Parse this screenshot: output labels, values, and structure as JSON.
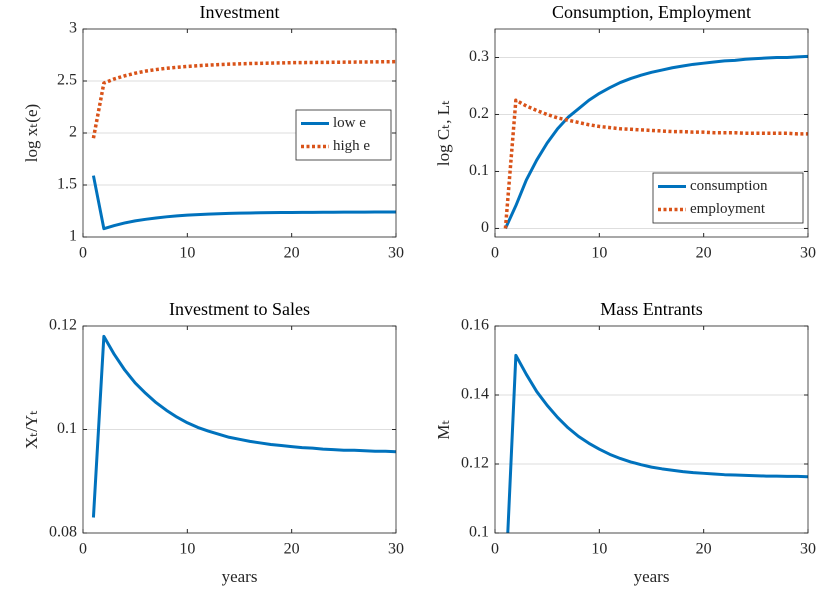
{
  "chart_data": [
    {
      "type": "line",
      "title": "Investment",
      "ylabel": "log xₜ(e)",
      "xlim": [
        0,
        30
      ],
      "xticks": [
        0,
        10,
        20,
        30
      ],
      "ylim": [
        1,
        3
      ],
      "yticks": [
        1,
        1.5,
        2,
        2.5,
        3
      ],
      "grid": true,
      "legend": "east",
      "x": [
        1,
        2,
        3,
        4,
        5,
        6,
        7,
        8,
        9,
        10,
        11,
        12,
        13,
        14,
        15,
        16,
        17,
        18,
        19,
        20,
        21,
        22,
        23,
        24,
        25,
        26,
        27,
        28,
        29,
        30
      ],
      "series": [
        {
          "name": "low e",
          "color": "#0072BD",
          "line_style": "solid",
          "values": [
            1.59,
            1.08,
            1.11,
            1.135,
            1.155,
            1.17,
            1.183,
            1.194,
            1.203,
            1.21,
            1.215,
            1.22,
            1.224,
            1.227,
            1.229,
            1.231,
            1.233,
            1.234,
            1.235,
            1.236,
            1.237,
            1.237,
            1.238,
            1.238,
            1.239,
            1.239,
            1.239,
            1.24,
            1.24,
            1.24
          ]
        },
        {
          "name": "high e",
          "color": "#D95319",
          "line_style": "dotted",
          "values": [
            1.95,
            2.48,
            2.52,
            2.55,
            2.575,
            2.595,
            2.61,
            2.622,
            2.632,
            2.64,
            2.647,
            2.653,
            2.658,
            2.662,
            2.665,
            2.668,
            2.67,
            2.672,
            2.674,
            2.676,
            2.677,
            2.678,
            2.679,
            2.68,
            2.681,
            2.682,
            2.683,
            2.684,
            2.685,
            2.686
          ]
        }
      ]
    },
    {
      "type": "line",
      "title": "Consumption, Employment",
      "ylabel": "log Cₜ, Lₜ",
      "xlim": [
        0,
        30
      ],
      "xticks": [
        0,
        10,
        20,
        30
      ],
      "ylim": [
        -0.015,
        0.35
      ],
      "yticks": [
        0,
        0.1,
        0.2,
        0.3
      ],
      "grid": true,
      "legend": "southeast",
      "x": [
        1,
        2,
        3,
        4,
        5,
        6,
        7,
        8,
        9,
        10,
        11,
        12,
        13,
        14,
        15,
        16,
        17,
        18,
        19,
        20,
        21,
        22,
        23,
        24,
        25,
        26,
        27,
        28,
        29,
        30
      ],
      "series": [
        {
          "name": "consumption",
          "color": "#0072BD",
          "line_style": "solid",
          "values": [
            0,
            0.04,
            0.085,
            0.12,
            0.15,
            0.175,
            0.195,
            0.21,
            0.225,
            0.237,
            0.247,
            0.256,
            0.263,
            0.269,
            0.274,
            0.278,
            0.282,
            0.285,
            0.288,
            0.29,
            0.292,
            0.294,
            0.295,
            0.297,
            0.298,
            0.299,
            0.3,
            0.3,
            0.301,
            0.302
          ]
        },
        {
          "name": "employment",
          "color": "#D95319",
          "line_style": "dotted",
          "values": [
            0,
            0.225,
            0.215,
            0.207,
            0.2,
            0.194,
            0.19,
            0.186,
            0.182,
            0.179,
            0.177,
            0.175,
            0.174,
            0.173,
            0.172,
            0.171,
            0.17,
            0.17,
            0.169,
            0.169,
            0.168,
            0.168,
            0.168,
            0.167,
            0.167,
            0.167,
            0.167,
            0.167,
            0.166,
            0.166
          ]
        }
      ]
    },
    {
      "type": "line",
      "title": "Investment to Sales",
      "ylabel": "Xₜ/Yₜ",
      "xlabel": "years",
      "xlim": [
        0,
        30
      ],
      "xticks": [
        0,
        10,
        20,
        30
      ],
      "ylim": [
        0.08,
        0.12
      ],
      "yticks": [
        0.08,
        0.1,
        0.12
      ],
      "grid": true,
      "x": [
        1,
        2,
        3,
        4,
        5,
        6,
        7,
        8,
        9,
        10,
        11,
        12,
        13,
        14,
        15,
        16,
        17,
        18,
        19,
        20,
        21,
        22,
        23,
        24,
        25,
        26,
        27,
        28,
        29,
        30
      ],
      "series": [
        {
          "color": "#0072BD",
          "line_style": "solid",
          "values": [
            0.083,
            0.118,
            0.1145,
            0.1115,
            0.109,
            0.107,
            0.1052,
            0.1037,
            0.1024,
            0.1013,
            0.1004,
            0.0997,
            0.0991,
            0.0985,
            0.0981,
            0.0977,
            0.0974,
            0.0971,
            0.0969,
            0.0967,
            0.0965,
            0.0964,
            0.0962,
            0.0961,
            0.096,
            0.096,
            0.0959,
            0.0958,
            0.0958,
            0.0957
          ]
        }
      ]
    },
    {
      "type": "line",
      "title": "Mass Entrants",
      "ylabel": "Mₜ",
      "xlabel": "years",
      "xlim": [
        0,
        30
      ],
      "xticks": [
        0,
        10,
        20,
        30
      ],
      "ylim": [
        0.1,
        0.16
      ],
      "yticks": [
        0.1,
        0.12,
        0.14,
        0.16
      ],
      "grid": true,
      "x": [
        1,
        2,
        3,
        4,
        5,
        6,
        7,
        8,
        9,
        10,
        11,
        12,
        13,
        14,
        15,
        16,
        17,
        18,
        19,
        20,
        21,
        22,
        23,
        24,
        25,
        26,
        27,
        28,
        29,
        30
      ],
      "series": [
        {
          "color": "#0072BD",
          "line_style": "solid",
          "values": [
            0.085,
            0.1515,
            0.146,
            0.141,
            0.137,
            0.1335,
            0.1305,
            0.128,
            0.126,
            0.1243,
            0.1228,
            0.1216,
            0.1206,
            0.1198,
            0.1191,
            0.1186,
            0.1182,
            0.1178,
            0.1175,
            0.1173,
            0.1171,
            0.1169,
            0.1168,
            0.1167,
            0.1166,
            0.1165,
            0.1165,
            0.1164,
            0.1164,
            0.1163
          ]
        }
      ]
    }
  ]
}
